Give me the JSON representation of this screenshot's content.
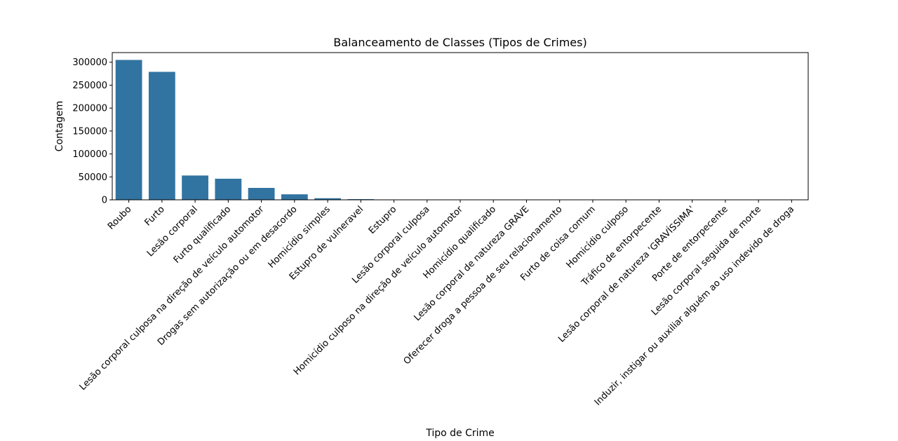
{
  "chart_data": {
    "type": "bar",
    "title": "Balanceamento de Classes (Tipos de Crimes)",
    "xlabel": "Tipo de Crime",
    "ylabel": "Contagem",
    "ylim": [
      0,
      321000
    ],
    "yticks": [
      {
        "value": 0,
        "label": "0"
      },
      {
        "value": 50000,
        "label": "50000"
      },
      {
        "value": 100000,
        "label": "100000"
      },
      {
        "value": 150000,
        "label": "150000"
      },
      {
        "value": 200000,
        "label": "200000"
      },
      {
        "value": 250000,
        "label": "250000"
      },
      {
        "value": 300000,
        "label": "300000"
      }
    ],
    "grid": false,
    "bar_color": "#3274a1",
    "categories": [
      "Roubo",
      "Furto",
      "Lesão corporal",
      "Furto qualificado",
      "Lesão corporal culposa na direção de veículo automotor",
      "Drogas sem autorização ou em desacordo",
      "Homicídio simples",
      "Estupro de vulneravel",
      "Estupro",
      "Lesão corporal culposa",
      "Homicídio culposo na direção de veículo automotor",
      "Homicídio qualificado",
      "Lesão corporal de natureza GRAVE",
      "Oferecer droga a pessoa de seu relacionamento",
      "Furto de coisa comum",
      "Homicídio culposo",
      "Tráfico de entorpecente",
      "Lesão corporal  de natureza 'GRAVÍSSIMA'",
      "Porte de entorpecente",
      "Lesão corporal seguida de morte",
      "Induzir, instigar ou auxiliar alguém ao uso indevido de droga"
    ],
    "values": [
      305000,
      279000,
      53000,
      46000,
      26000,
      12000,
      3500,
      1500,
      400,
      250,
      150,
      120,
      90,
      60,
      40,
      30,
      20,
      15,
      10,
      5,
      3
    ]
  }
}
